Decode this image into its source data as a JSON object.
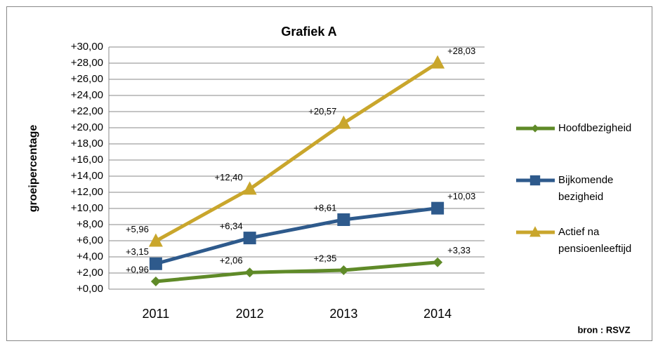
{
  "chart_data": {
    "type": "line",
    "title": "Grafiek A",
    "y_label": "groeipercentage",
    "source": "bron : RSVZ",
    "categories": [
      "2011",
      "2012",
      "2013",
      "2014"
    ],
    "series": [
      {
        "name": "Hoofdbezigheid",
        "color": "#5f8a28",
        "marker": "diamond",
        "values": [
          0.96,
          2.06,
          2.35,
          3.33
        ],
        "value_labels": [
          "+0,96",
          "+2,06",
          "+2,35",
          "+3,33"
        ]
      },
      {
        "name": "Bijkomende bezigheid",
        "color": "#2e5a8c",
        "marker": "square",
        "values": [
          3.15,
          6.34,
          8.61,
          10.03
        ],
        "value_labels": [
          "+3,15",
          "+6,34",
          "+8,61",
          "+10,03"
        ]
      },
      {
        "name": "Actief na pensioenleeftijd",
        "color": "#c9a62c",
        "marker": "triangle",
        "values": [
          5.96,
          12.4,
          20.57,
          28.03
        ],
        "value_labels": [
          "+5,96",
          "+12,40",
          "+20,57",
          "+28,03"
        ]
      }
    ],
    "ylim": [
      0,
      30
    ],
    "yticks": [
      {
        "value": 0,
        "label": "+0,00"
      },
      {
        "value": 2,
        "label": "+2,00"
      },
      {
        "value": 4,
        "label": "+4,00"
      },
      {
        "value": 6,
        "label": "+6,00"
      },
      {
        "value": 8,
        "label": "+8,00"
      },
      {
        "value": 10,
        "label": "+10,00"
      },
      {
        "value": 12,
        "label": "+12,00"
      },
      {
        "value": 14,
        "label": "+14,00"
      },
      {
        "value": 16,
        "label": "+16,00"
      },
      {
        "value": 18,
        "label": "+18,00"
      },
      {
        "value": 20,
        "label": "+20,00"
      },
      {
        "value": 22,
        "label": "+22,00"
      },
      {
        "value": 24,
        "label": "+24,00"
      },
      {
        "value": 26,
        "label": "+26,00"
      },
      {
        "value": 28,
        "label": "+28,00"
      },
      {
        "value": 30,
        "label": "+30,00"
      }
    ],
    "grid": true,
    "legend": "right"
  }
}
